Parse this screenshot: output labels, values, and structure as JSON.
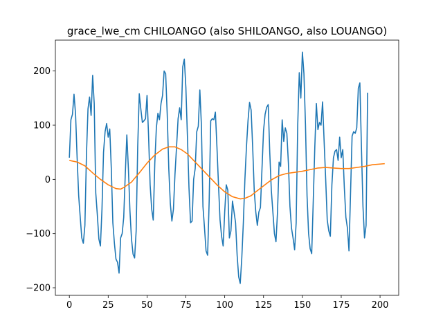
{
  "chart_data": {
    "type": "line",
    "title": "grace_lwe_cm CHILOANGO (also SHILOANGO, also LOUANGO)",
    "xlabel": "",
    "ylabel": "",
    "xlim": [
      -9,
      212
    ],
    "ylim": [
      -214,
      257
    ],
    "grid": false,
    "xticks": [
      0,
      25,
      50,
      75,
      100,
      125,
      150,
      175,
      200
    ],
    "xtick_labels": [
      "0",
      "25",
      "50",
      "75",
      "100",
      "125",
      "150",
      "175",
      "200"
    ],
    "yticks": [
      -200,
      -100,
      0,
      100,
      200
    ],
    "ytick_labels": [
      "−200",
      "−100",
      "0",
      "100",
      "200"
    ],
    "series": [
      {
        "color": "#1f77b4",
        "points": [
          [
            0,
            40
          ],
          [
            1,
            110
          ],
          [
            2,
            120
          ],
          [
            3,
            157
          ],
          [
            4,
            120
          ],
          [
            5,
            40
          ],
          [
            6,
            -30
          ],
          [
            7,
            -70
          ],
          [
            8,
            -108
          ],
          [
            9,
            -118
          ],
          [
            10,
            -85
          ],
          [
            11,
            45
          ],
          [
            12,
            130
          ],
          [
            13,
            152
          ],
          [
            14,
            118
          ],
          [
            15,
            192
          ],
          [
            16,
            140
          ],
          [
            17,
            -25
          ],
          [
            18,
            -65
          ],
          [
            19,
            -110
          ],
          [
            20,
            -123
          ],
          [
            21,
            -55
          ],
          [
            22,
            50
          ],
          [
            23,
            88
          ],
          [
            24,
            103
          ],
          [
            25,
            78
          ],
          [
            26,
            93
          ],
          [
            27,
            20
          ],
          [
            28,
            -80
          ],
          [
            29,
            -118
          ],
          [
            30,
            -147
          ],
          [
            31,
            -153
          ],
          [
            32,
            -173
          ],
          [
            33,
            -108
          ],
          [
            34,
            -100
          ],
          [
            35,
            -70
          ],
          [
            36,
            10
          ],
          [
            37,
            82
          ],
          [
            38,
            20
          ],
          [
            39,
            -58
          ],
          [
            40,
            -110
          ],
          [
            41,
            -138
          ],
          [
            42,
            -145
          ],
          [
            43,
            -95
          ],
          [
            44,
            60
          ],
          [
            45,
            158
          ],
          [
            46,
            130
          ],
          [
            47,
            105
          ],
          [
            48,
            108
          ],
          [
            49,
            112
          ],
          [
            50,
            155
          ],
          [
            51,
            80
          ],
          [
            52,
            -10
          ],
          [
            53,
            -55
          ],
          [
            54,
            -75
          ],
          [
            55,
            30
          ],
          [
            56,
            95
          ],
          [
            57,
            122
          ],
          [
            58,
            110
          ],
          [
            59,
            140
          ],
          [
            60,
            155
          ],
          [
            61,
            200
          ],
          [
            62,
            195
          ],
          [
            63,
            120
          ],
          [
            64,
            20
          ],
          [
            65,
            -45
          ],
          [
            66,
            -77
          ],
          [
            67,
            -55
          ],
          [
            68,
            10
          ],
          [
            69,
            60
          ],
          [
            70,
            112
          ],
          [
            71,
            132
          ],
          [
            72,
            110
          ],
          [
            73,
            208
          ],
          [
            74,
            222
          ],
          [
            75,
            170
          ],
          [
            76,
            80
          ],
          [
            77,
            -15
          ],
          [
            78,
            -80
          ],
          [
            79,
            -77
          ],
          [
            80,
            0
          ],
          [
            81,
            20
          ],
          [
            82,
            88
          ],
          [
            83,
            98
          ],
          [
            84,
            165
          ],
          [
            85,
            100
          ],
          [
            86,
            -50
          ],
          [
            87,
            -90
          ],
          [
            88,
            -132
          ],
          [
            89,
            -140
          ],
          [
            90,
            -40
          ],
          [
            91,
            108
          ],
          [
            92,
            112
          ],
          [
            93,
            110
          ],
          [
            94,
            124
          ],
          [
            95,
            60
          ],
          [
            96,
            -10
          ],
          [
            97,
            -75
          ],
          [
            98,
            -105
          ],
          [
            99,
            -123
          ],
          [
            100,
            -60
          ],
          [
            101,
            -10
          ],
          [
            102,
            -20
          ],
          [
            103,
            -108
          ],
          [
            104,
            -95
          ],
          [
            105,
            -40
          ],
          [
            106,
            -60
          ],
          [
            107,
            -80
          ],
          [
            108,
            -140
          ],
          [
            109,
            -180
          ],
          [
            110,
            -192
          ],
          [
            111,
            -145
          ],
          [
            112,
            -80
          ],
          [
            113,
            0
          ],
          [
            114,
            60
          ],
          [
            115,
            108
          ],
          [
            116,
            142
          ],
          [
            117,
            128
          ],
          [
            118,
            60
          ],
          [
            119,
            -20
          ],
          [
            120,
            -60
          ],
          [
            121,
            -85
          ],
          [
            122,
            -60
          ],
          [
            123,
            -52
          ],
          [
            124,
            20
          ],
          [
            125,
            90
          ],
          [
            126,
            120
          ],
          [
            127,
            133
          ],
          [
            128,
            138
          ],
          [
            129,
            50
          ],
          [
            130,
            -20
          ],
          [
            131,
            -60
          ],
          [
            132,
            -100
          ],
          [
            133,
            -115
          ],
          [
            134,
            -60
          ],
          [
            135,
            32
          ],
          [
            136,
            24
          ],
          [
            137,
            110
          ],
          [
            138,
            70
          ],
          [
            139,
            95
          ],
          [
            140,
            85
          ],
          [
            141,
            30
          ],
          [
            142,
            -50
          ],
          [
            143,
            -90
          ],
          [
            144,
            -108
          ],
          [
            145,
            -130
          ],
          [
            146,
            -80
          ],
          [
            147,
            100
          ],
          [
            148,
            197
          ],
          [
            149,
            150
          ],
          [
            150,
            235
          ],
          [
            151,
            195
          ],
          [
            152,
            100
          ],
          [
            153,
            -30
          ],
          [
            154,
            -100
          ],
          [
            155,
            -128
          ],
          [
            156,
            -137
          ],
          [
            157,
            -40
          ],
          [
            158,
            60
          ],
          [
            159,
            140
          ],
          [
            160,
            92
          ],
          [
            161,
            105
          ],
          [
            162,
            100
          ],
          [
            163,
            143
          ],
          [
            164,
            70
          ],
          [
            165,
            0
          ],
          [
            166,
            -75
          ],
          [
            167,
            -95
          ],
          [
            168,
            -105
          ],
          [
            169,
            -10
          ],
          [
            170,
            40
          ],
          [
            171,
            52
          ],
          [
            172,
            55
          ],
          [
            173,
            35
          ],
          [
            174,
            78
          ],
          [
            175,
            40
          ],
          [
            176,
            55
          ],
          [
            177,
            -15
          ],
          [
            178,
            -70
          ],
          [
            179,
            -90
          ],
          [
            180,
            -132
          ],
          [
            181,
            -25
          ],
          [
            182,
            80
          ],
          [
            183,
            88
          ],
          [
            184,
            85
          ],
          [
            185,
            95
          ],
          [
            186,
            168
          ],
          [
            187,
            178
          ],
          [
            188,
            60
          ],
          [
            189,
            -50
          ],
          [
            190,
            -108
          ],
          [
            191,
            -85
          ],
          [
            192,
            160
          ]
        ]
      },
      {
        "color": "#ff7f0e",
        "points": [
          [
            0,
            35
          ],
          [
            5,
            32
          ],
          [
            10,
            25
          ],
          [
            15,
            12
          ],
          [
            20,
            0
          ],
          [
            25,
            -10
          ],
          [
            30,
            -17
          ],
          [
            33,
            -18
          ],
          [
            35,
            -15
          ],
          [
            40,
            -5
          ],
          [
            45,
            12
          ],
          [
            50,
            30
          ],
          [
            55,
            45
          ],
          [
            60,
            56
          ],
          [
            64,
            60
          ],
          [
            68,
            60
          ],
          [
            72,
            55
          ],
          [
            76,
            47
          ],
          [
            80,
            35
          ],
          [
            85,
            20
          ],
          [
            90,
            5
          ],
          [
            95,
            -10
          ],
          [
            100,
            -23
          ],
          [
            105,
            -32
          ],
          [
            110,
            -36
          ],
          [
            113,
            -35
          ],
          [
            117,
            -30
          ],
          [
            120,
            -23
          ],
          [
            125,
            -12
          ],
          [
            130,
            -1
          ],
          [
            135,
            7
          ],
          [
            140,
            11
          ],
          [
            145,
            13
          ],
          [
            150,
            15
          ],
          [
            155,
            18
          ],
          [
            160,
            21
          ],
          [
            165,
            22
          ],
          [
            170,
            21
          ],
          [
            175,
            20
          ],
          [
            180,
            20
          ],
          [
            185,
            22
          ],
          [
            190,
            24
          ],
          [
            195,
            27
          ],
          [
            203,
            29
          ]
        ]
      }
    ]
  }
}
